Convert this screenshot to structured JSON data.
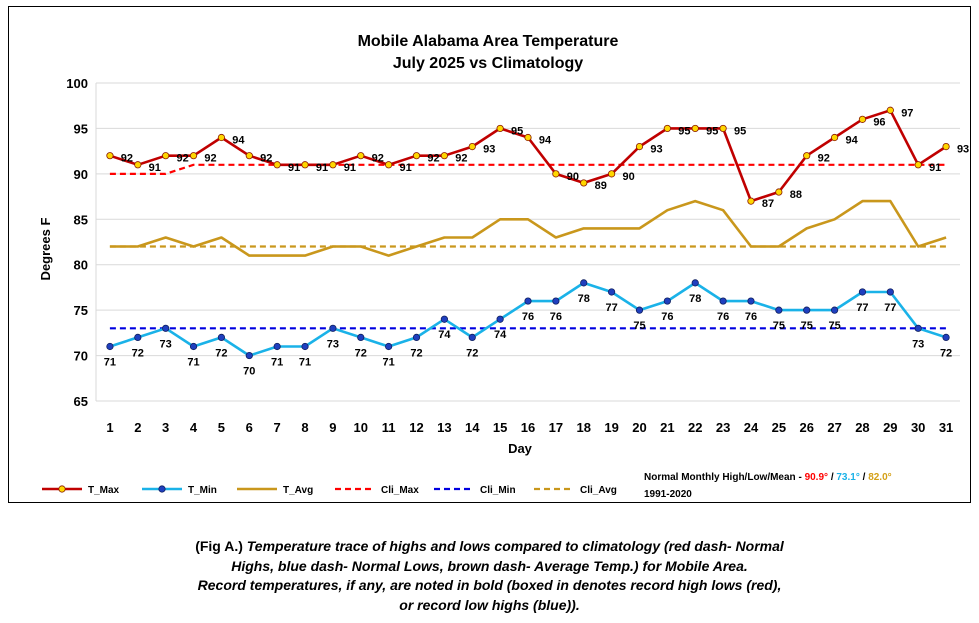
{
  "chart_data": {
    "type": "line",
    "title": "Mobile Alabama Area Temperature",
    "subtitle": "July 2025 vs Climatology",
    "xlabel": "Day",
    "ylabel": "Degrees F",
    "ylim": [
      65,
      100
    ],
    "yticks": [
      65,
      70,
      75,
      80,
      85,
      90,
      95,
      100
    ],
    "x": [
      1,
      2,
      3,
      4,
      5,
      6,
      7,
      8,
      9,
      10,
      11,
      12,
      13,
      14,
      15,
      16,
      17,
      18,
      19,
      20,
      21,
      22,
      23,
      24,
      25,
      26,
      27,
      28,
      29,
      30,
      31
    ],
    "grid": "horizontal",
    "legend_position": "bottom",
    "series": [
      {
        "name": "T_Max",
        "color": "#c00000",
        "marker_color": "#ffd700",
        "style": "solid",
        "values": [
          92,
          91,
          92,
          92,
          94,
          92,
          91,
          91,
          91,
          92,
          91,
          92,
          92,
          93,
          95,
          94,
          90,
          89,
          90,
          93,
          95,
          95,
          95,
          87,
          88,
          92,
          94,
          96,
          97,
          91,
          93
        ]
      },
      {
        "name": "T_Min",
        "color": "#1ab2e8",
        "marker_color": "#1f3fbf",
        "style": "solid",
        "values": [
          71,
          72,
          73,
          71,
          72,
          70,
          71,
          71,
          73,
          72,
          71,
          72,
          74,
          72,
          74,
          76,
          76,
          78,
          77,
          75,
          76,
          78,
          76,
          76,
          75,
          75,
          75,
          77,
          77,
          73,
          72
        ]
      },
      {
        "name": "T_Avg",
        "color": "#c9971c",
        "style": "solid",
        "values": [
          82,
          82,
          83,
          82,
          83,
          81,
          81,
          81,
          82,
          82,
          81,
          82,
          83,
          83,
          85,
          85,
          83,
          84,
          84,
          84,
          86,
          87,
          86,
          82,
          82,
          84,
          85,
          87,
          87,
          82,
          83
        ]
      },
      {
        "name": "Cli_Max",
        "color": "#ff0000",
        "style": "dashed",
        "values": [
          90,
          90,
          90,
          91,
          91,
          91,
          91,
          91,
          91,
          91,
          91,
          91,
          91,
          91,
          91,
          91,
          91,
          91,
          91,
          91,
          91,
          91,
          91,
          91,
          91,
          91,
          91,
          91,
          91,
          91,
          91
        ]
      },
      {
        "name": "Cli_Min",
        "color": "#0000e0",
        "style": "dashed",
        "values": [
          73,
          73,
          73,
          73,
          73,
          73,
          73,
          73,
          73,
          73,
          73,
          73,
          73,
          73,
          73,
          73,
          73,
          73,
          73,
          73,
          73,
          73,
          73,
          73,
          73,
          73,
          73,
          73,
          73,
          73,
          73
        ]
      },
      {
        "name": "Cli_Avg",
        "color": "#c9971c",
        "style": "dashed",
        "values": [
          82,
          82,
          82,
          82,
          82,
          82,
          82,
          82,
          82,
          82,
          82,
          82,
          82,
          82,
          82,
          82,
          82,
          82,
          82,
          82,
          82,
          82,
          82,
          82,
          82,
          82,
          82,
          82,
          82,
          82,
          82
        ]
      }
    ],
    "normals": {
      "label": "Normal Monthly High/Low/Mean -",
      "high": "90.9°",
      "high_color": "#ff0000",
      "sep1": "/",
      "low": "73.1°",
      "low_color": "#1ab2e8",
      "sep2": "/",
      "mean": "82.0°",
      "mean_color": "#d4a017",
      "period": "1991-2020"
    }
  },
  "caption": {
    "lead": "(Fig A.)",
    "line1": " Temperature trace of highs and lows compared to climatology (red dash- Normal",
    "line2": "Highs, blue dash- Normal Lows, brown dash- Average Temp.) for Mobile Area.",
    "line3": "Record temperatures, if any, are noted in bold (boxed in denotes record high lows (red),",
    "line4": "or record low highs (blue))."
  }
}
